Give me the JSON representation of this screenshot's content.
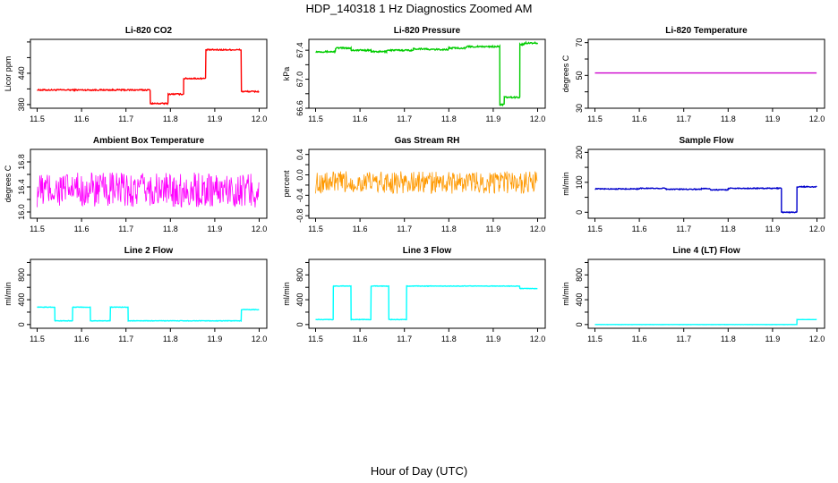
{
  "figure": {
    "title": "HDP_140318  1 Hz Diagnostics Zoomed AM",
    "xlabel": "Hour of Day (UTC)"
  },
  "chart_data": [
    {
      "type": "line",
      "title": "Li-820 CO2",
      "ylabel": "Licor ppm",
      "color": "#ff0000",
      "xlim": [
        11.5,
        12.0
      ],
      "ylim": [
        373,
        505
      ],
      "xticks": [
        "11.5",
        "11.6",
        "11.7",
        "11.8",
        "11.9",
        "12.0"
      ],
      "yticks": [
        {
          "v": 380,
          "label": "380"
        },
        {
          "v": 410,
          "label": ""
        },
        {
          "v": 440,
          "label": "440"
        },
        {
          "v": 470,
          "label": ""
        },
        {
          "v": 500,
          "label": ""
        }
      ],
      "segments": [
        [
          11.5,
          11.755,
          408
        ],
        [
          11.755,
          11.795,
          382
        ],
        [
          11.795,
          11.83,
          400
        ],
        [
          11.83,
          11.88,
          430
        ],
        [
          11.88,
          11.96,
          485
        ],
        [
          11.96,
          12.0,
          405
        ]
      ],
      "noise": 1.2
    },
    {
      "type": "line",
      "title": "Li-820 Pressure",
      "ylabel": "kPa",
      "color": "#00cc00",
      "xlim": [
        11.5,
        12.0
      ],
      "ylim": [
        66.6,
        67.55
      ],
      "xticks": [
        "11.5",
        "11.6",
        "11.7",
        "11.8",
        "11.9",
        "12.0"
      ],
      "yticks": [
        {
          "v": 66.6,
          "label": "66.6"
        },
        {
          "v": 66.8,
          "label": ""
        },
        {
          "v": 67.0,
          "label": "67.0"
        },
        {
          "v": 67.2,
          "label": ""
        },
        {
          "v": 67.4,
          "label": "67.4"
        }
      ],
      "segments": [
        [
          11.5,
          11.545,
          67.38
        ],
        [
          11.545,
          11.58,
          67.43
        ],
        [
          11.58,
          11.625,
          67.4
        ],
        [
          11.625,
          11.66,
          67.38
        ],
        [
          11.66,
          11.72,
          67.4
        ],
        [
          11.72,
          11.75,
          67.42
        ],
        [
          11.75,
          11.8,
          67.41
        ],
        [
          11.8,
          11.84,
          67.43
        ],
        [
          11.84,
          11.875,
          67.45
        ],
        [
          11.875,
          11.915,
          67.45
        ],
        [
          11.915,
          11.925,
          66.65
        ],
        [
          11.925,
          11.96,
          66.75
        ],
        [
          11.96,
          11.97,
          67.48
        ],
        [
          11.97,
          12.0,
          67.5
        ]
      ],
      "noise": 0.01
    },
    {
      "type": "line",
      "title": "Li-820 Temperature",
      "ylabel": "degrees C",
      "color": "#cc00cc",
      "xlim": [
        11.5,
        12.0
      ],
      "ylim": [
        30,
        72
      ],
      "xticks": [
        "11.5",
        "11.6",
        "11.7",
        "11.8",
        "11.9",
        "12.0"
      ],
      "yticks": [
        {
          "v": 30,
          "label": "30"
        },
        {
          "v": 40,
          "label": ""
        },
        {
          "v": 50,
          "label": "50"
        },
        {
          "v": 60,
          "label": ""
        },
        {
          "v": 70,
          "label": "70"
        }
      ],
      "segments": [
        [
          11.5,
          12.0,
          51.5
        ]
      ],
      "noise": 0
    },
    {
      "type": "line",
      "title": "Ambient Box Temperature",
      "ylabel": "degrees C",
      "color": "#ff00ff",
      "xlim": [
        11.5,
        12.0
      ],
      "ylim": [
        15.9,
        17.0
      ],
      "xticks": [
        "11.5",
        "11.6",
        "11.7",
        "11.8",
        "11.9",
        "12.0"
      ],
      "yticks": [
        {
          "v": 16.0,
          "label": "16.0"
        },
        {
          "v": 16.2,
          "label": ""
        },
        {
          "v": 16.4,
          "label": "16.4"
        },
        {
          "v": 16.6,
          "label": ""
        },
        {
          "v": 16.8,
          "label": "16.8"
        }
      ],
      "segments": [
        [
          11.5,
          12.0,
          16.35
        ]
      ],
      "noise": 0.28
    },
    {
      "type": "line",
      "title": "Gas Stream RH",
      "ylabel": "percent",
      "color": "#ff9900",
      "xlim": [
        11.5,
        12.0
      ],
      "ylim": [
        -0.85,
        0.5
      ],
      "xticks": [
        "11.5",
        "11.6",
        "11.7",
        "11.8",
        "11.9",
        "12.0"
      ],
      "yticks": [
        {
          "v": -0.8,
          "label": "-0.8"
        },
        {
          "v": -0.6,
          "label": ""
        },
        {
          "v": -0.4,
          "label": "-0.4"
        },
        {
          "v": -0.2,
          "label": ""
        },
        {
          "v": 0.0,
          "label": "0.0"
        },
        {
          "v": 0.2,
          "label": ""
        },
        {
          "v": 0.4,
          "label": "0.4"
        }
      ],
      "segments": [
        [
          11.5,
          12.0,
          -0.15
        ]
      ],
      "noise": 0.22
    },
    {
      "type": "line",
      "title": "Sample Flow",
      "ylabel": "ml/min",
      "color": "#0000cc",
      "xlim": [
        11.5,
        12.0
      ],
      "ylim": [
        -20,
        210
      ],
      "xticks": [
        "11.5",
        "11.6",
        "11.7",
        "11.8",
        "11.9",
        "12.0"
      ],
      "yticks": [
        {
          "v": 0,
          "label": "0"
        },
        {
          "v": 50,
          "label": ""
        },
        {
          "v": 100,
          "label": "100"
        },
        {
          "v": 150,
          "label": ""
        },
        {
          "v": 200,
          "label": "200"
        }
      ],
      "segments": [
        [
          11.5,
          11.6,
          78
        ],
        [
          11.6,
          11.66,
          80
        ],
        [
          11.66,
          11.74,
          77
        ],
        [
          11.74,
          11.76,
          79
        ],
        [
          11.76,
          11.8,
          75
        ],
        [
          11.8,
          11.92,
          80
        ],
        [
          11.92,
          11.955,
          0
        ],
        [
          11.955,
          12.0,
          85
        ]
      ],
      "noise": 1.5
    },
    {
      "type": "line",
      "title": "Line 2 Flow",
      "ylabel": "ml/min",
      "color": "#00ffff",
      "xlim": [
        11.5,
        12.0
      ],
      "ylim": [
        -60,
        1050
      ],
      "xticks": [
        "11.5",
        "11.6",
        "11.7",
        "11.8",
        "11.9",
        "12.0"
      ],
      "yticks": [
        {
          "v": 0,
          "label": "0"
        },
        {
          "v": 200,
          "label": ""
        },
        {
          "v": 400,
          "label": "400"
        },
        {
          "v": 600,
          "label": ""
        },
        {
          "v": 800,
          "label": "800"
        },
        {
          "v": 1000,
          "label": ""
        }
      ],
      "segments": [
        [
          11.5,
          11.54,
          280
        ],
        [
          11.54,
          11.58,
          60
        ],
        [
          11.58,
          11.62,
          280
        ],
        [
          11.62,
          11.665,
          60
        ],
        [
          11.665,
          11.705,
          280
        ],
        [
          11.705,
          11.96,
          60
        ],
        [
          11.96,
          12.0,
          240
        ]
      ],
      "noise": 4
    },
    {
      "type": "line",
      "title": "Line 3 Flow",
      "ylabel": "ml/min",
      "color": "#00ffff",
      "xlim": [
        11.5,
        12.0
      ],
      "ylim": [
        -60,
        1050
      ],
      "xticks": [
        "11.5",
        "11.6",
        "11.7",
        "11.8",
        "11.9",
        "12.0"
      ],
      "yticks": [
        {
          "v": 0,
          "label": "0"
        },
        {
          "v": 200,
          "label": ""
        },
        {
          "v": 400,
          "label": "400"
        },
        {
          "v": 600,
          "label": ""
        },
        {
          "v": 800,
          "label": "800"
        },
        {
          "v": 1000,
          "label": ""
        }
      ],
      "segments": [
        [
          11.5,
          11.54,
          80
        ],
        [
          11.54,
          11.58,
          620
        ],
        [
          11.58,
          11.625,
          80
        ],
        [
          11.625,
          11.665,
          620
        ],
        [
          11.665,
          11.705,
          80
        ],
        [
          11.705,
          11.96,
          620
        ],
        [
          11.96,
          12.0,
          580
        ]
      ],
      "noise": 4
    },
    {
      "type": "line",
      "title": "Line 4 (LT) Flow",
      "ylabel": "ml/min",
      "color": "#00ffff",
      "xlim": [
        11.5,
        12.0
      ],
      "ylim": [
        -60,
        1050
      ],
      "xticks": [
        "11.5",
        "11.6",
        "11.7",
        "11.8",
        "11.9",
        "12.0"
      ],
      "yticks": [
        {
          "v": 0,
          "label": "0"
        },
        {
          "v": 200,
          "label": ""
        },
        {
          "v": 400,
          "label": "400"
        },
        {
          "v": 600,
          "label": ""
        },
        {
          "v": 800,
          "label": "800"
        },
        {
          "v": 1000,
          "label": ""
        }
      ],
      "segments": [
        [
          11.5,
          11.955,
          0
        ],
        [
          11.955,
          12.0,
          80
        ]
      ],
      "noise": 1
    }
  ]
}
